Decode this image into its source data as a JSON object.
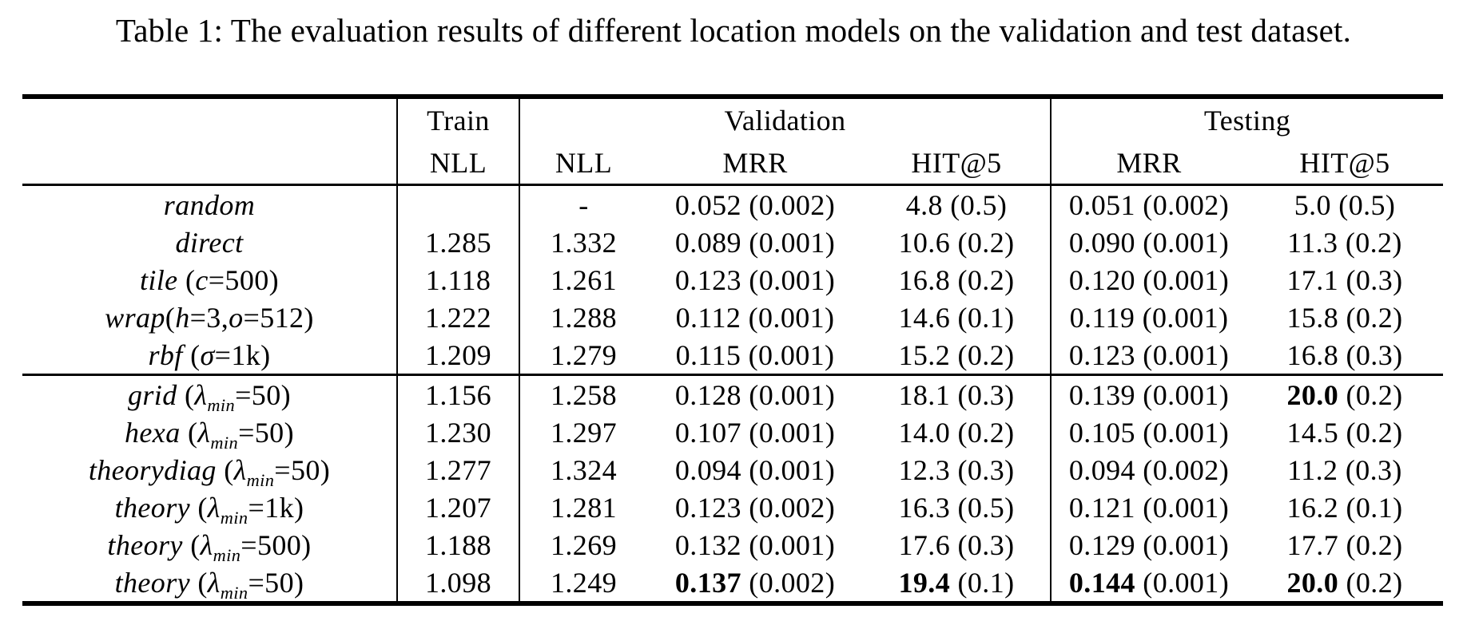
{
  "caption": "Table 1: The evaluation results of different location models on the validation and test dataset.",
  "colors": {
    "text": "#000000",
    "background": "#ffffff",
    "rule": "#000000"
  },
  "table": {
    "group_headers": {
      "train": "Train",
      "validation": "Validation",
      "testing": "Testing"
    },
    "sub_headers": {
      "train_nll": "NLL",
      "val_nll": "NLL",
      "val_mrr": "MRR",
      "val_hit5": "HIT@5",
      "test_mrr": "MRR",
      "test_hit5": "HIT@5"
    },
    "value_format": "mean (std)",
    "row_groups": [
      [
        {
          "label_text": "random",
          "label_html": "<i>random</i>",
          "train_nll": "",
          "val_nll": "-",
          "val_mrr": {
            "v": "0.052",
            "s": "0.002",
            "bold": false
          },
          "val_hit5": {
            "v": "4.8",
            "s": "0.5",
            "bold": false
          },
          "test_mrr": {
            "v": "0.051",
            "s": "0.002",
            "bold": false
          },
          "test_hit5": {
            "v": "5.0",
            "s": "0.5",
            "bold": false
          }
        },
        {
          "label_text": "direct",
          "label_html": "<i>direct</i>",
          "train_nll": "1.285",
          "val_nll": "1.332",
          "val_mrr": {
            "v": "0.089",
            "s": "0.001",
            "bold": false
          },
          "val_hit5": {
            "v": "10.6",
            "s": "0.2",
            "bold": false
          },
          "test_mrr": {
            "v": "0.090",
            "s": "0.001",
            "bold": false
          },
          "test_hit5": {
            "v": "11.3",
            "s": "0.2",
            "bold": false
          }
        },
        {
          "label_text": "tile (c=500)",
          "label_html": "<i>tile</i> (<i>c</i>=500)",
          "train_nll": "1.118",
          "val_nll": "1.261",
          "val_mrr": {
            "v": "0.123",
            "s": "0.001",
            "bold": false
          },
          "val_hit5": {
            "v": "16.8",
            "s": "0.2",
            "bold": false
          },
          "test_mrr": {
            "v": "0.120",
            "s": "0.001",
            "bold": false
          },
          "test_hit5": {
            "v": "17.1",
            "s": "0.3",
            "bold": false
          }
        },
        {
          "label_text": "wrap(h=3,o=512)",
          "label_html": "<i>wrap</i>(<i>h</i>=3,<i>o</i>=512)",
          "train_nll": "1.222",
          "val_nll": "1.288",
          "val_mrr": {
            "v": "0.112",
            "s": "0.001",
            "bold": false
          },
          "val_hit5": {
            "v": "14.6",
            "s": "0.1",
            "bold": false
          },
          "test_mrr": {
            "v": "0.119",
            "s": "0.001",
            "bold": false
          },
          "test_hit5": {
            "v": "15.8",
            "s": "0.2",
            "bold": false
          }
        },
        {
          "label_text": "rbf (σ=1k)",
          "label_html": "<i>rbf</i> (<i>σ</i>=1k)",
          "train_nll": "1.209",
          "val_nll": "1.279",
          "val_mrr": {
            "v": "0.115",
            "s": "0.001",
            "bold": false
          },
          "val_hit5": {
            "v": "15.2",
            "s": "0.2",
            "bold": false
          },
          "test_mrr": {
            "v": "0.123",
            "s": "0.001",
            "bold": false
          },
          "test_hit5": {
            "v": "16.8",
            "s": "0.3",
            "bold": false
          }
        }
      ],
      [
        {
          "label_text": "grid (λmin=50)",
          "label_html": "<i>grid</i> (<i>λ</i><sub><i>min</i></sub>=50)",
          "train_nll": "1.156",
          "val_nll": "1.258",
          "val_mrr": {
            "v": "0.128",
            "s": "0.001",
            "bold": false
          },
          "val_hit5": {
            "v": "18.1",
            "s": "0.3",
            "bold": false
          },
          "test_mrr": {
            "v": "0.139",
            "s": "0.001",
            "bold": false
          },
          "test_hit5": {
            "v": "20.0",
            "s": "0.2",
            "bold": true
          }
        },
        {
          "label_text": "hexa (λmin=50)",
          "label_html": "<i>hexa</i> (<i>λ</i><sub><i>min</i></sub>=50)",
          "train_nll": "1.230",
          "val_nll": "1.297",
          "val_mrr": {
            "v": "0.107",
            "s": "0.001",
            "bold": false
          },
          "val_hit5": {
            "v": "14.0",
            "s": "0.2",
            "bold": false
          },
          "test_mrr": {
            "v": "0.105",
            "s": "0.001",
            "bold": false
          },
          "test_hit5": {
            "v": "14.5",
            "s": "0.2",
            "bold": false
          }
        },
        {
          "label_text": "theorydiag (λmin=50)",
          "label_html": "<i>theorydiag</i> (<i>λ</i><sub><i>min</i></sub>=50)",
          "train_nll": "1.277",
          "val_nll": "1.324",
          "val_mrr": {
            "v": "0.094",
            "s": "0.001",
            "bold": false
          },
          "val_hit5": {
            "v": "12.3",
            "s": "0.3",
            "bold": false
          },
          "test_mrr": {
            "v": "0.094",
            "s": "0.002",
            "bold": false
          },
          "test_hit5": {
            "v": "11.2",
            "s": "0.3",
            "bold": false
          }
        },
        {
          "label_text": "theory (λmin=1k)",
          "label_html": "<i>theory</i> (<i>λ</i><sub><i>min</i></sub>=1k)",
          "train_nll": "1.207",
          "val_nll": "1.281",
          "val_mrr": {
            "v": "0.123",
            "s": "0.002",
            "bold": false
          },
          "val_hit5": {
            "v": "16.3",
            "s": "0.5",
            "bold": false
          },
          "test_mrr": {
            "v": "0.121",
            "s": "0.001",
            "bold": false
          },
          "test_hit5": {
            "v": "16.2",
            "s": "0.1",
            "bold": false
          }
        },
        {
          "label_text": "theory (λmin=500)",
          "label_html": "<i>theory</i> (<i>λ</i><sub><i>min</i></sub>=500)",
          "train_nll": "1.188",
          "val_nll": "1.269",
          "val_mrr": {
            "v": "0.132",
            "s": "0.001",
            "bold": false
          },
          "val_hit5": {
            "v": "17.6",
            "s": "0.3",
            "bold": false
          },
          "test_mrr": {
            "v": "0.129",
            "s": "0.001",
            "bold": false
          },
          "test_hit5": {
            "v": "17.7",
            "s": "0.2",
            "bold": false
          }
        },
        {
          "label_text": "theory (λmin=50)",
          "label_html": "<i>theory</i> (<i>λ</i><sub><i>min</i></sub>=50)",
          "train_nll": "1.098",
          "val_nll": "1.249",
          "val_mrr": {
            "v": "0.137",
            "s": "0.002",
            "bold": true
          },
          "val_hit5": {
            "v": "19.4",
            "s": "0.1",
            "bold": true
          },
          "test_mrr": {
            "v": "0.144",
            "s": "0.001",
            "bold": true
          },
          "test_hit5": {
            "v": "20.0",
            "s": "0.2",
            "bold": true
          }
        }
      ]
    ]
  }
}
